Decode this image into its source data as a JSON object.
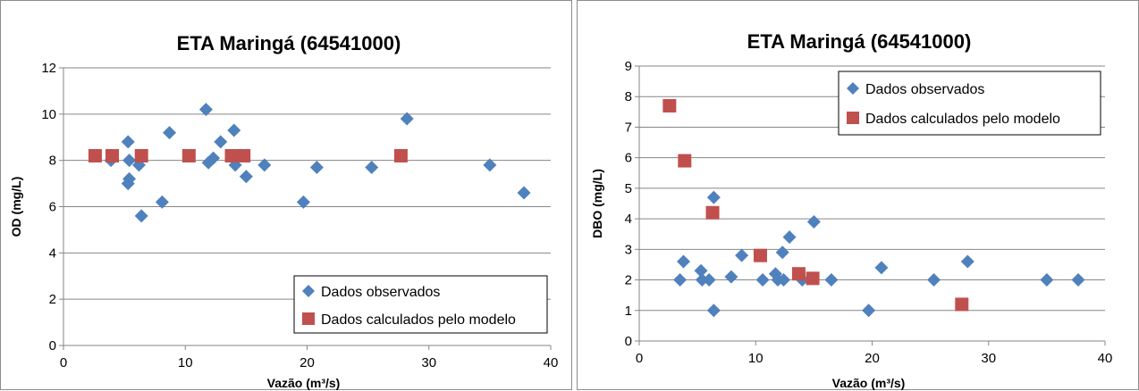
{
  "colors": {
    "observed": "#4F81BD",
    "model": "#C0504D",
    "grid": "#868686"
  },
  "chart_data": [
    {
      "type": "scatter",
      "title": "ETA Maringá (64541000)",
      "xlabel": "Vazão (m³/s)",
      "ylabel": "OD (mg/L)",
      "xlim": [
        0,
        40
      ],
      "ylim": [
        0,
        12
      ],
      "xticks": [
        0,
        10,
        20,
        30,
        40
      ],
      "yticks": [
        0,
        2,
        4,
        6,
        8,
        10,
        12
      ],
      "grid": true,
      "legend_position": "bottom-right",
      "series": [
        {
          "name": "Dados observados",
          "marker": "diamond",
          "points": [
            [
              3.9,
              8.0
            ],
            [
              5.3,
              8.8
            ],
            [
              5.4,
              8.0
            ],
            [
              5.3,
              7.0
            ],
            [
              5.4,
              7.2
            ],
            [
              6.2,
              7.8
            ],
            [
              6.4,
              5.6
            ],
            [
              8.1,
              6.2
            ],
            [
              8.7,
              9.2
            ],
            [
              11.7,
              10.2
            ],
            [
              11.9,
              7.9
            ],
            [
              12.3,
              8.1
            ],
            [
              12.9,
              8.8
            ],
            [
              14.0,
              9.3
            ],
            [
              14.1,
              7.8
            ],
            [
              15.0,
              7.3
            ],
            [
              16.5,
              7.8
            ],
            [
              19.7,
              6.2
            ],
            [
              20.8,
              7.7
            ],
            [
              25.3,
              7.7
            ],
            [
              28.2,
              9.8
            ],
            [
              35.0,
              7.8
            ],
            [
              37.8,
              6.6
            ]
          ]
        },
        {
          "name": "Dados calculados pelo modelo",
          "marker": "square",
          "points": [
            [
              2.6,
              8.2
            ],
            [
              4.0,
              8.2
            ],
            [
              6.4,
              8.2
            ],
            [
              10.3,
              8.2
            ],
            [
              13.8,
              8.2
            ],
            [
              14.8,
              8.2
            ],
            [
              27.7,
              8.2
            ]
          ]
        }
      ]
    },
    {
      "type": "scatter",
      "title": "ETA Maringá (64541000)",
      "xlabel": "Vazão (m³/s)",
      "ylabel": "DBO (mg/L)",
      "xlim": [
        0,
        40
      ],
      "ylim": [
        0,
        9
      ],
      "xticks": [
        0,
        10,
        20,
        30,
        40
      ],
      "yticks": [
        0,
        1,
        2,
        3,
        4,
        5,
        6,
        7,
        8,
        9
      ],
      "grid": true,
      "legend_position": "top-right",
      "series": [
        {
          "name": "Dados observados",
          "marker": "diamond",
          "points": [
            [
              3.5,
              2.0
            ],
            [
              3.8,
              2.6
            ],
            [
              5.3,
              2.3
            ],
            [
              5.4,
              2.0
            ],
            [
              6.0,
              2.0
            ],
            [
              6.4,
              4.7
            ],
            [
              6.4,
              1.0
            ],
            [
              7.9,
              2.1
            ],
            [
              8.8,
              2.8
            ],
            [
              10.6,
              2.0
            ],
            [
              11.7,
              2.2
            ],
            [
              11.9,
              2.0
            ],
            [
              12.3,
              2.9
            ],
            [
              12.4,
              2.0
            ],
            [
              12.9,
              3.4
            ],
            [
              14.0,
              2.0
            ],
            [
              15.0,
              3.9
            ],
            [
              16.5,
              2.0
            ],
            [
              19.7,
              1.0
            ],
            [
              20.8,
              2.4
            ],
            [
              25.3,
              2.0
            ],
            [
              28.2,
              2.6
            ],
            [
              35.0,
              2.0
            ],
            [
              37.7,
              2.0
            ]
          ]
        },
        {
          "name": "Dados calculados pelo modelo",
          "marker": "square",
          "points": [
            [
              2.6,
              7.7
            ],
            [
              3.9,
              5.9
            ],
            [
              6.3,
              4.2
            ],
            [
              10.4,
              2.8
            ],
            [
              13.7,
              2.2
            ],
            [
              14.9,
              2.05
            ],
            [
              27.7,
              1.2
            ]
          ]
        }
      ]
    }
  ]
}
